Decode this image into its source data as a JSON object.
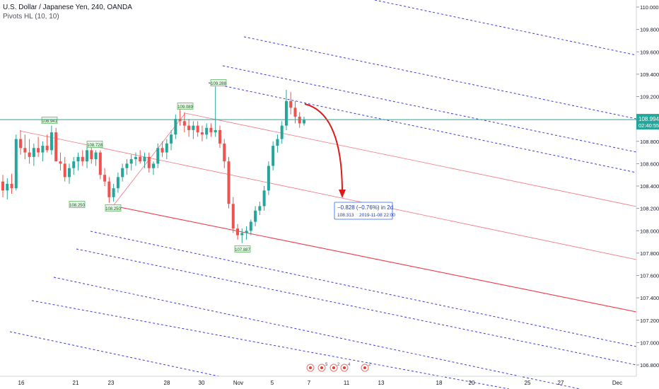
{
  "header": {
    "symbol_line": "U.S. Dollar / Japanese Yen, 240, OANDA",
    "study_line": "Pivots HL (10, 10)"
  },
  "chart_data": {
    "type": "candlestick",
    "symbol": "USDJPY",
    "timeframe": "240",
    "ylim": [
      106.8,
      110.0
    ],
    "y_ticks": [
      "110.000",
      "109.800",
      "109.600",
      "109.400",
      "109.200",
      "109.000",
      "108.800",
      "108.600",
      "108.400",
      "108.200",
      "108.000",
      "107.800",
      "107.600",
      "107.400",
      "107.200",
      "107.000",
      "106.800"
    ],
    "x_ticks": [
      "16",
      "21",
      "23",
      "28",
      "30",
      "Nov",
      "5",
      "7",
      "11",
      "13",
      "18",
      "20",
      "25",
      "27",
      "Dec"
    ],
    "last_price": "108.994",
    "countdown": "02:40:55",
    "pivot_labels": [
      {
        "text": "108.941",
        "type": "high"
      },
      {
        "text": "108.728",
        "type": "high"
      },
      {
        "text": "108.250",
        "type": "low"
      },
      {
        "text": "108.250",
        "type": "low"
      },
      {
        "text": "109.089",
        "type": "high"
      },
      {
        "text": "109.288",
        "type": "high"
      },
      {
        "text": "107.887",
        "type": "low"
      }
    ],
    "projection": {
      "change_text": "−0.828 (−0.76%) in 2d",
      "price": "108.313",
      "datetime": "2019-11-08  22:00"
    },
    "event_markers": [
      "5",
      "2",
      "4",
      "2"
    ],
    "colors": {
      "up": "#26a69a",
      "down": "#ef5350",
      "pitchfork_solid": "#f23645",
      "pitchfork_dashed": "#3a3ae0",
      "price_line": "#26a69a",
      "projection_box": "#2962ff"
    }
  }
}
